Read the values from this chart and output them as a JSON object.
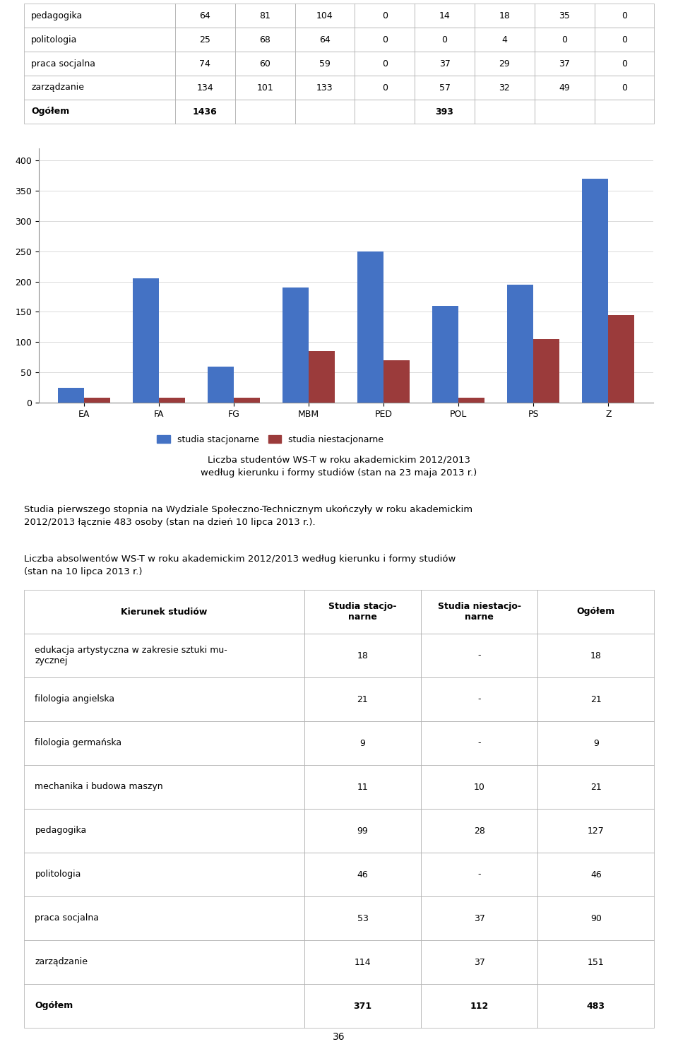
{
  "top_table": {
    "rows": [
      [
        "pedagogika",
        "64",
        "81",
        "104",
        "0",
        "14",
        "18",
        "35",
        "0"
      ],
      [
        "politologia",
        "25",
        "68",
        "64",
        "0",
        "0",
        "4",
        "0",
        "0"
      ],
      [
        "praca socjalna",
        "74",
        "60",
        "59",
        "0",
        "37",
        "29",
        "37",
        "0"
      ],
      [
        "zarządzanie",
        "134",
        "101",
        "133",
        "0",
        "57",
        "32",
        "49",
        "0"
      ],
      [
        "Ogółem",
        "1436",
        "",
        "",
        "",
        "393",
        "",
        "",
        ""
      ]
    ]
  },
  "chart": {
    "categories": [
      "EA",
      "FA",
      "FG",
      "MBM",
      "PED",
      "POL",
      "PS",
      "Z"
    ],
    "stacjonarne": [
      25,
      205,
      60,
      190,
      250,
      160,
      195,
      370
    ],
    "niestacjonarne": [
      8,
      8,
      8,
      85,
      70,
      8,
      105,
      145
    ],
    "bar_color_blue": "#4472C4",
    "bar_color_red": "#9B3B3B",
    "ylim": [
      0,
      420
    ],
    "yticks": [
      0,
      50,
      100,
      150,
      200,
      250,
      300,
      350,
      400
    ],
    "legend_stacjonarne": "studia stacjonarne",
    "legend_niestacjonarne": "studia niestacjonarne"
  },
  "chart_caption_line1": "Liczba studentów WS-T w roku akademickim 2012/2013",
  "chart_caption_line2": "według kierunku i formy studiów (stan na 23 maja 2013 r.)",
  "paragraph1": "Studia pierwszego stopnia na Wydziale Społeczno-Technicznym ukończyły w roku akademickim\n2012/2013 łącznie 483 osoby (stan na dzień 10 lipca 2013 r.).",
  "paragraph2_title_line1": "Liczba absolwentów WS-T w roku akademickim 2012/2013 według kierunku i formy studiów",
  "paragraph2_title_line2": "(stan na 10 lipca 2013 r.)",
  "bottom_table": {
    "col_headers": [
      "Kierunek studiów",
      "Studia stacjo-\nnarne",
      "Studia niestacjo-\nnarne",
      "Ogółem"
    ],
    "rows": [
      [
        "edukacja artystyczna w zakresie sztuki mu-\nzycznej",
        "18",
        "-",
        "18"
      ],
      [
        "filologia angielska",
        "21",
        "-",
        "21"
      ],
      [
        "filologia germańska",
        "9",
        "-",
        "9"
      ],
      [
        "mechanika i budowa maszyn",
        "11",
        "10",
        "21"
      ],
      [
        "pedagogika",
        "99",
        "28",
        "127"
      ],
      [
        "politologia",
        "46",
        "-",
        "46"
      ],
      [
        "praca socjalna",
        "53",
        "37",
        "90"
      ],
      [
        "zarządzanie",
        "114",
        "37",
        "151"
      ],
      [
        "Ogółem",
        "371",
        "112",
        "483"
      ]
    ]
  },
  "page_number": "36",
  "background_color": "#FFFFFF",
  "table_border_color": "#aaaaaa",
  "text_color": "#000000"
}
